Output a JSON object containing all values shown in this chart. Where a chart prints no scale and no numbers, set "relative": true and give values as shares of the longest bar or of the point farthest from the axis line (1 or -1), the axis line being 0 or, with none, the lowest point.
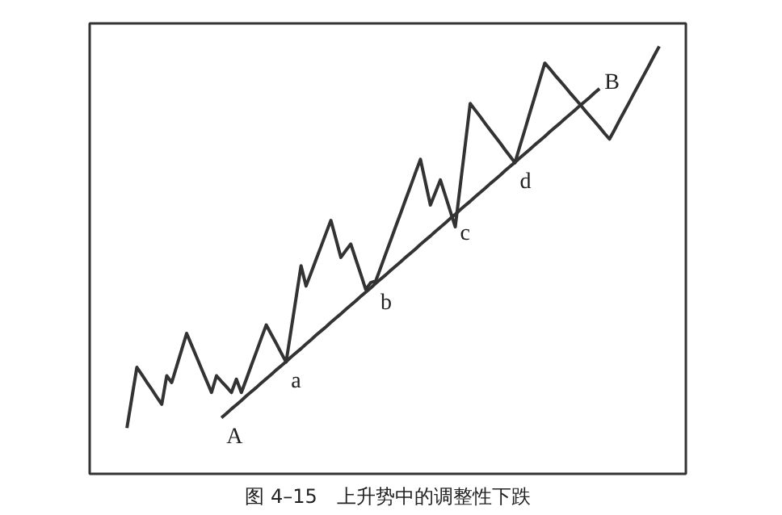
{
  "chart_data": {
    "type": "line",
    "relative": true,
    "title": "图 4–15　上升势中的调整性下跌",
    "categories": [
      null,
      null,
      null,
      null,
      null,
      null,
      null,
      null,
      null,
      null,
      null,
      null,
      null,
      null,
      null,
      null,
      null,
      null,
      null,
      null,
      null,
      null,
      null,
      null,
      null,
      null,
      null,
      null,
      null,
      null,
      null,
      null,
      null,
      null,
      null,
      null,
      null,
      null,
      null,
      null,
      null,
      null,
      null,
      null,
      null,
      null,
      null,
      null,
      null,
      null,
      null,
      null,
      null,
      null,
      null,
      null,
      null,
      null,
      null,
      null,
      null,
      null,
      null,
      null,
      null,
      null,
      null,
      null,
      null,
      null,
      null,
      null,
      null,
      null,
      null,
      null,
      null,
      null,
      null,
      null,
      null,
      null,
      null,
      null,
      null,
      null,
      null,
      null,
      null,
      null,
      null,
      null,
      null,
      null,
      null,
      null,
      null,
      null,
      null,
      null,
      null,
      null,
      null,
      null,
      null,
      null,
      null,
      null
    ],
    "series": [
      {
        "color": "#333333",
        "values": [
          0,
          0.08,
          0.159,
          0.14,
          0.12,
          0.101,
          0.081,
          0.062,
          0.137,
          0.119,
          0.162,
          0.205,
          0.248,
          0.217,
          0.186,
          0.155,
          0.124,
          0.093,
          0.137,
          0.122,
          0.108,
          0.093,
          0.128,
          0.093,
          0.128,
          0.164,
          0.199,
          0.235,
          0.27,
          0.246,
          0.222,
          0.197,
          0.173,
          0.257,
          0.341,
          0.425,
          0.372,
          0.406,
          0.441,
          0.475,
          0.51,
          0.544,
          0.496,
          0.447,
          0.465,
          0.482,
          0.442,
          0.403,
          0.363,
          0.381,
          0.385,
          0.42,
          0.456,
          0.491,
          0.527,
          0.562,
          0.598,
          0.633,
          0.669,
          0.704,
          0.644,
          0.584,
          0.617,
          0.65,
          0.609,
          0.568,
          0.527,
          0.635,
          0.742,
          0.85,
          0.833,
          0.816,
          0.798,
          0.781,
          0.764,
          0.747,
          0.729,
          0.712,
          0.695,
          0.739,
          0.782,
          0.826,
          0.869,
          0.913,
          0.956,
          0.941,
          0.925,
          0.91,
          0.895,
          0.879,
          0.864,
          0.849,
          0.833,
          0.818,
          0.803,
          0.788,
          0.772,
          0.757,
          0.781,
          0.806,
          0.83,
          0.854,
          0.879,
          0.903,
          0.927,
          0.951,
          0.976,
          1
        ]
      },
      {
        "color": "#333333",
        "values": [
          null,
          null,
          null,
          null,
          null,
          null,
          null,
          null,
          null,
          null,
          null,
          null,
          null,
          null,
          null,
          null,
          null,
          null,
          null,
          0.027,
          0.038,
          0.05,
          0.061,
          0.072,
          0.084,
          0.095,
          0.106,
          0.118,
          0.129,
          0.14,
          0.152,
          0.163,
          0.174,
          0.186,
          0.197,
          0.208,
          0.22,
          0.231,
          0.243,
          0.254,
          0.265,
          0.277,
          0.288,
          0.299,
          0.311,
          0.322,
          0.333,
          0.345,
          0.356,
          0.367,
          0.379,
          0.39,
          0.401,
          0.413,
          0.424,
          0.435,
          0.447,
          0.458,
          0.469,
          0.481,
          0.492,
          0.503,
          0.515,
          0.526,
          0.537,
          0.549,
          0.56,
          0.572,
          0.583,
          0.594,
          0.606,
          0.617,
          0.628,
          0.64,
          0.651,
          0.662,
          0.674,
          0.685,
          0.696,
          0.708,
          0.719,
          0.73,
          0.742,
          0.753,
          0.764,
          0.776,
          0.787,
          0.798,
          0.81,
          0.821,
          0.832,
          0.844,
          0.855,
          0.866,
          0.878,
          0.889,
          null,
          null,
          null,
          null,
          null,
          null,
          null,
          null,
          null,
          null,
          null,
          null
        ]
      }
    ],
    "annotations": [
      {
        "text": "A",
        "y": 0.027
      },
      {
        "text": "a",
        "y": 0.174
      },
      {
        "text": "b",
        "y": 0.379
      },
      {
        "text": "c",
        "y": 0.56
      },
      {
        "text": "d",
        "y": 0.696
      },
      "B"
    ],
    "grid": false
  }
}
